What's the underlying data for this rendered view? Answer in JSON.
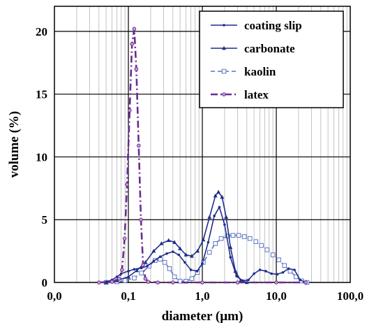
{
  "chart_data": {
    "type": "line",
    "xlabel": "diameter (µm)",
    "ylabel": "volume (%)",
    "x_scale": "log",
    "xlim": [
      0.01,
      100
    ],
    "ylim": [
      0,
      22
    ],
    "grid": true,
    "legend_position": "top-right",
    "x_tick_labels": [
      "0,0",
      "0,1",
      "1,0",
      "10,0",
      "100,0"
    ],
    "y_tick_labels": [
      "0",
      "5",
      "10",
      "15",
      "20"
    ],
    "series": [
      {
        "name": "coating slip",
        "color": "#1f2d8a",
        "marker": "dot",
        "dash": "solid",
        "x": [
          0.04,
          0.05,
          0.06,
          0.07,
          0.08,
          0.1,
          0.12,
          0.15,
          0.18,
          0.22,
          0.27,
          0.33,
          0.4,
          0.48,
          0.58,
          0.7,
          0.85,
          1.0,
          1.2,
          1.45,
          1.7,
          2.0,
          2.4,
          2.9,
          3.5,
          4.2,
          5.0,
          6.0,
          7.2,
          8.6,
          10.3,
          12.3,
          14.7,
          17.6,
          21.0,
          25.0
        ],
        "y": [
          0.0,
          0.05,
          0.2,
          0.45,
          0.7,
          0.9,
          1.05,
          1.15,
          1.3,
          1.7,
          2.05,
          2.3,
          2.45,
          2.2,
          1.6,
          1.0,
          0.9,
          1.5,
          3.2,
          5.3,
          6.0,
          4.6,
          2.0,
          0.5,
          0.15,
          0.2,
          0.7,
          1.0,
          0.9,
          0.7,
          0.65,
          0.8,
          1.1,
          1.0,
          0.2,
          0.0
        ]
      },
      {
        "name": "carbonate",
        "color": "#1f2d8a",
        "marker": "triangle",
        "dash": "solid",
        "x": [
          0.05,
          0.07,
          0.1,
          0.13,
          0.17,
          0.22,
          0.28,
          0.35,
          0.42,
          0.5,
          0.6,
          0.72,
          0.86,
          1.03,
          1.25,
          1.5,
          1.65,
          1.85,
          2.1,
          2.4,
          2.8,
          3.3,
          4.0
        ],
        "y": [
          0.0,
          0.15,
          0.45,
          0.95,
          1.6,
          2.5,
          3.1,
          3.35,
          3.2,
          2.7,
          2.2,
          2.1,
          2.5,
          3.4,
          5.2,
          6.9,
          7.2,
          6.8,
          5.2,
          2.8,
          0.9,
          0.15,
          0.0
        ]
      },
      {
        "name": "kaolin",
        "color": "#5a72c4",
        "marker": "square",
        "dash": "dashed",
        "x": [
          0.05,
          0.07,
          0.09,
          0.12,
          0.15,
          0.19,
          0.23,
          0.27,
          0.31,
          0.36,
          0.42,
          0.5,
          0.6,
          0.72,
          0.86,
          1.03,
          1.25,
          1.5,
          1.8,
          2.2,
          2.6,
          3.1,
          3.7,
          4.4,
          5.3,
          6.3,
          7.5,
          9.0,
          10.8,
          12.9,
          15.4,
          18.5,
          22.0,
          26.0
        ],
        "y": [
          0.0,
          0.05,
          0.15,
          0.35,
          0.75,
          1.3,
          1.75,
          1.85,
          1.6,
          1.1,
          0.45,
          0.1,
          0.1,
          0.3,
          0.8,
          1.6,
          2.4,
          3.1,
          3.5,
          3.7,
          3.75,
          3.75,
          3.65,
          3.5,
          3.25,
          2.95,
          2.6,
          2.2,
          1.8,
          1.35,
          0.9,
          0.45,
          0.12,
          0.0
        ]
      },
      {
        "name": "latex",
        "color": "#6a2c8e",
        "marker": "circle",
        "dash": "dashdot",
        "x": [
          0.04,
          0.06,
          0.075,
          0.082,
          0.089,
          0.096,
          0.104,
          0.112,
          0.12,
          0.128,
          0.138,
          0.148,
          0.158,
          0.17,
          0.185,
          0.25,
          0.4,
          1.0,
          3.0,
          10.0,
          25.0
        ],
        "y": [
          0.0,
          0.05,
          0.3,
          1.0,
          3.5,
          7.8,
          13.7,
          19.0,
          20.2,
          17.0,
          10.9,
          5.0,
          1.4,
          0.3,
          0.05,
          0.0,
          0.0,
          0.0,
          0.0,
          0.0,
          0.0
        ]
      }
    ]
  }
}
